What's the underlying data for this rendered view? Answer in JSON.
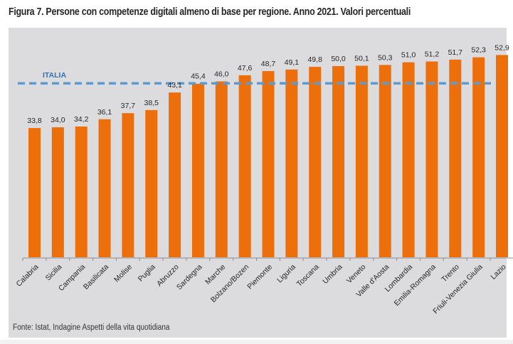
{
  "figure": {
    "title": "Figura 7. Persone con competenze digitali almeno di base per regione. Anno 2021. Valori percentuali",
    "source": "Fonte: Istat, Indagine Aspetti della vita quotidiana"
  },
  "colors": {
    "bar": "#ed6f0c",
    "reference_line": "#5b9bd5",
    "reference_label": "#2e75b6",
    "background": "#dcdcdf",
    "text": "#262626"
  },
  "chart_data": {
    "type": "bar",
    "title": "Figura 7. Persone con competenze digitali almeno di base per regione. Anno 2021. Valori percentuali",
    "xlabel": "",
    "ylabel": "",
    "ylim": [
      0,
      57
    ],
    "grid": false,
    "legend": "none",
    "categories": [
      "Calabria",
      "Sicilia",
      "Campania",
      "Basilicata",
      "Molise",
      "Puglia",
      "Abruzzo",
      "Sardegna",
      "Marche",
      "Bolzano/Bozen",
      "Piemonte",
      "Liguria",
      "Toscana",
      "Umbria",
      "Veneto",
      "Valle d'Aosta",
      "Lombardia",
      "Emilia-Romagna",
      "Trento",
      "Friuli-Venezia Giulia",
      "Lazio"
    ],
    "values": [
      33.8,
      34.0,
      34.2,
      36.1,
      37.7,
      38.5,
      43.1,
      45.4,
      46.0,
      47.6,
      48.7,
      49.1,
      49.8,
      50.0,
      50.1,
      50.3,
      51.0,
      51.2,
      51.7,
      52.3,
      52.9
    ],
    "value_labels": [
      "33,8",
      "34,0",
      "34,2",
      "36,1",
      "37,7",
      "38,5",
      "43,1",
      "45,4",
      "46,0",
      "47,6",
      "48,7",
      "49,1",
      "49,8",
      "50,0",
      "50,1",
      "50,3",
      "51,0",
      "51,2",
      "51,7",
      "52,3",
      "52,9"
    ],
    "reference_line": {
      "label": "ITALIA",
      "value": 45.5,
      "style": "dashed"
    }
  }
}
